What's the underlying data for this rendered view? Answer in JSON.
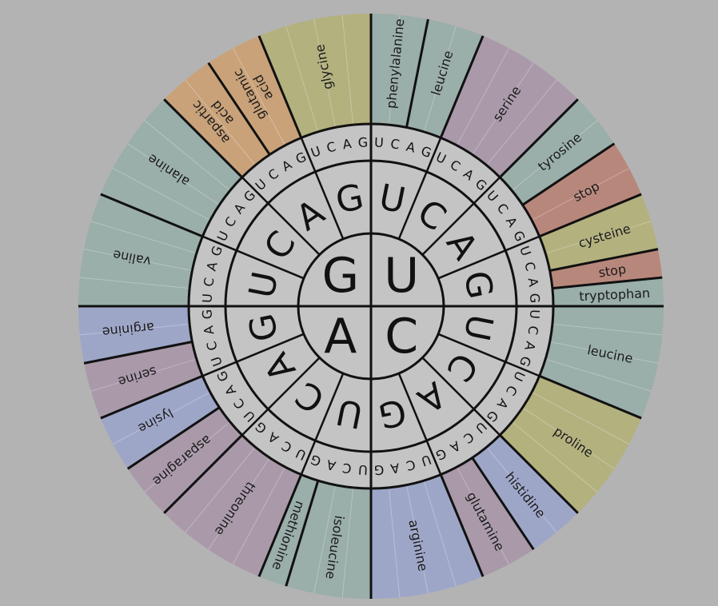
{
  "first_bases": [
    "U",
    "C",
    "A",
    "G"
  ],
  "second_bases": [
    "U",
    "C",
    "A",
    "G"
  ],
  "third_bases": [
    "U",
    "C",
    "A",
    "G"
  ],
  "amino_acids": [
    {
      "name": "phenylalanine",
      "lines": [
        "phenylalanine"
      ],
      "codons": 2,
      "color": "#9aaeaa"
    },
    {
      "name": "leucine",
      "lines": [
        "leucine"
      ],
      "codons": 2,
      "color": "#9aaeaa"
    },
    {
      "name": "serine",
      "lines": [
        "serine"
      ],
      "codons": 4,
      "color": "#a999a9"
    },
    {
      "name": "tyrosine",
      "lines": [
        "tyrosine"
      ],
      "codons": 2,
      "color": "#9aaeaa"
    },
    {
      "name": "stop",
      "lines": [
        "stop"
      ],
      "codons": 2,
      "color": "#b8877c"
    },
    {
      "name": "cysteine",
      "lines": [
        "cysteine"
      ],
      "codons": 2,
      "color": "#b3b17e"
    },
    {
      "name": "stop",
      "lines": [
        "stop"
      ],
      "codons": 1,
      "color": "#b8877c"
    },
    {
      "name": "tryptophan",
      "lines": [
        "tryptophan"
      ],
      "codons": 1,
      "color": "#9aaeaa"
    },
    {
      "name": "leucine",
      "lines": [
        "leucine"
      ],
      "codons": 4,
      "color": "#9aaeaa"
    },
    {
      "name": "proline",
      "lines": [
        "proline"
      ],
      "codons": 4,
      "color": "#b3b17e"
    },
    {
      "name": "histidine",
      "lines": [
        "histidine"
      ],
      "codons": 2,
      "color": "#9ea6c8"
    },
    {
      "name": "glutamine",
      "lines": [
        "glutamine"
      ],
      "codons": 2,
      "color": "#a999a9"
    },
    {
      "name": "arginine",
      "lines": [
        "arginine"
      ],
      "codons": 4,
      "color": "#9ea6c8"
    },
    {
      "name": "isoleucine",
      "lines": [
        "isoleucine"
      ],
      "codons": 3,
      "color": "#9aaeaa"
    },
    {
      "name": "methionine",
      "lines": [
        "methionine"
      ],
      "codons": 1,
      "color": "#9aaeaa"
    },
    {
      "name": "threonine",
      "lines": [
        "threonine"
      ],
      "codons": 4,
      "color": "#a999a9"
    },
    {
      "name": "asparagine",
      "lines": [
        "asparagine"
      ],
      "codons": 2,
      "color": "#a999a9"
    },
    {
      "name": "lysine",
      "lines": [
        "lysine"
      ],
      "codons": 2,
      "color": "#9ea6c8"
    },
    {
      "name": "serine",
      "lines": [
        "serine"
      ],
      "codons": 2,
      "color": "#a999a9"
    },
    {
      "name": "arginine",
      "lines": [
        "arginine"
      ],
      "codons": 2,
      "color": "#9ea6c8"
    },
    {
      "name": "valine",
      "lines": [
        "valine"
      ],
      "codons": 4,
      "color": "#9aaeaa"
    },
    {
      "name": "alanine",
      "lines": [
        "alanine"
      ],
      "codons": 4,
      "color": "#9aaeaa"
    },
    {
      "name": "aspartic acid",
      "lines": [
        "aspartic",
        "acid"
      ],
      "codons": 2,
      "color": "#c9a27a"
    },
    {
      "name": "glutamic acid",
      "lines": [
        "glutamic",
        "acid"
      ],
      "codons": 2,
      "color": "#c9a27a"
    },
    {
      "name": "glycine",
      "lines": [
        "glycine"
      ],
      "codons": 4,
      "color": "#b3b17e"
    }
  ],
  "colors": {
    "background": "#b3b3b3",
    "inner_fill": "#c4c4c4",
    "lines": "#111111"
  }
}
